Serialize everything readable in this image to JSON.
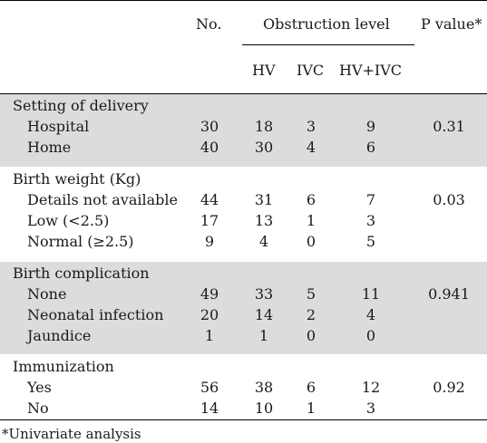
{
  "header": {
    "no": "No.",
    "obstruction_level": "Obstruction level",
    "p_value": "P value*",
    "hv": "HV",
    "ivc": "IVC",
    "hv_ivc": "HV+IVC"
  },
  "groups": [
    {
      "title": "Setting of delivery",
      "shaded": true,
      "rows": [
        {
          "label": "Hospital",
          "no": "30",
          "hv": "18",
          "ivc": "3",
          "hvivc": "9",
          "p": "0.31"
        },
        {
          "label": "Home",
          "no": "40",
          "hv": "30",
          "ivc": "4",
          "hvivc": "6",
          "p": ""
        }
      ]
    },
    {
      "title": "Birth weight (Kg)",
      "shaded": false,
      "rows": [
        {
          "label": "Details not available",
          "no": "44",
          "hv": "31",
          "ivc": "6",
          "hvivc": "7",
          "p": "0.03"
        },
        {
          "label": "Low (<2.5)",
          "no": "17",
          "hv": "13",
          "ivc": "1",
          "hvivc": "3",
          "p": ""
        },
        {
          "label": "Normal (≥2.5)",
          "no": "9",
          "hv": "4",
          "ivc": "0",
          "hvivc": "5",
          "p": ""
        }
      ]
    },
    {
      "title": "Birth complication",
      "shaded": true,
      "rows": [
        {
          "label": "None",
          "no": "49",
          "hv": "33",
          "ivc": "5",
          "hvivc": "11",
          "p": "0.941"
        },
        {
          "label": "Neonatal infection",
          "no": "20",
          "hv": "14",
          "ivc": "2",
          "hvivc": "4",
          "p": ""
        },
        {
          "label": "Jaundice",
          "no": "1",
          "hv": "1",
          "ivc": "0",
          "hvivc": "0",
          "p": ""
        }
      ]
    },
    {
      "title": "Immunization",
      "shaded": false,
      "rows": [
        {
          "label": "Yes",
          "no": "56",
          "hv": "38",
          "ivc": "6",
          "hvivc": "12",
          "p": "0.92"
        },
        {
          "label": "No",
          "no": "14",
          "hv": "10",
          "ivc": "1",
          "hvivc": "3",
          "p": ""
        }
      ]
    }
  ],
  "footnote": "*Univariate analysis",
  "colors": {
    "band_shade": "#dcdcdc",
    "text": "#1a1a1a",
    "rule": "#000000"
  }
}
